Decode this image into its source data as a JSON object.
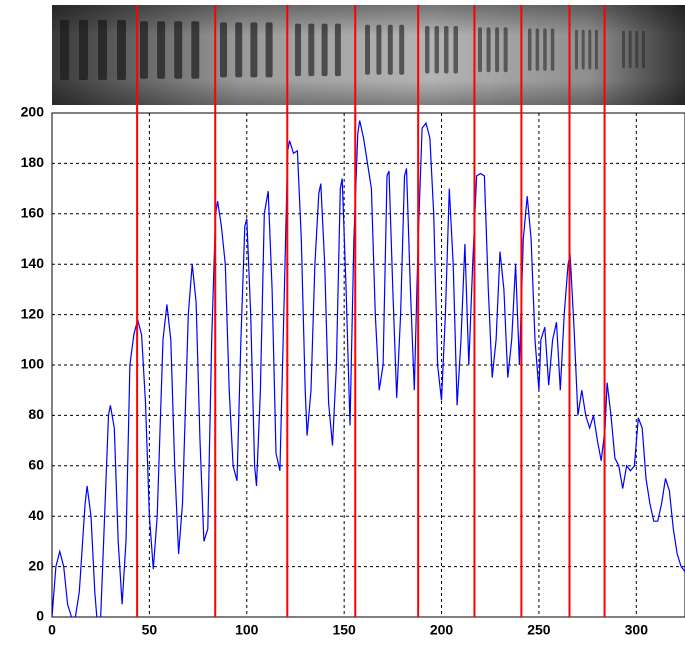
{
  "chart_data": {
    "type": "line",
    "x": [
      0,
      2,
      4,
      6,
      8,
      10,
      12,
      14,
      17,
      18,
      20,
      22,
      23,
      25,
      27,
      29,
      30,
      32,
      34,
      36,
      38,
      40,
      42,
      44,
      46,
      48,
      50,
      52,
      54,
      57,
      59,
      61,
      63,
      65,
      67,
      70,
      72,
      74,
      76,
      78,
      80,
      82,
      84,
      85,
      87,
      89,
      91,
      93,
      95,
      97,
      99,
      100,
      102,
      104,
      105,
      107,
      109,
      111,
      113,
      115,
      117,
      119,
      121,
      122,
      124,
      126,
      128,
      130,
      131,
      133,
      135,
      137,
      138,
      140,
      142,
      144,
      146,
      148,
      149,
      151,
      153,
      155,
      157,
      158,
      160,
      162,
      164,
      166,
      168,
      170,
      172,
      173,
      175,
      177,
      179,
      181,
      182,
      184,
      186,
      188,
      190,
      192,
      194,
      196,
      198,
      200,
      202,
      204,
      206,
      208,
      210,
      212,
      214,
      216,
      218,
      220,
      222,
      224,
      226,
      228,
      230,
      232,
      234,
      236,
      238,
      240,
      242,
      244,
      246,
      248,
      250,
      251,
      253,
      255,
      257,
      259,
      261,
      263,
      265,
      266,
      268,
      270,
      272,
      274,
      276,
      278,
      280,
      282,
      284,
      285,
      287,
      289,
      291,
      293,
      295,
      297,
      299,
      301,
      303,
      305,
      307,
      309,
      311,
      313,
      315,
      317,
      319,
      321,
      323,
      325
    ],
    "series": [
      {
        "color": "#0000ff",
        "values": [
          0,
          20,
          26,
          20,
          5,
          0,
          0,
          10,
          45,
          52,
          40,
          10,
          0,
          0,
          40,
          80,
          84,
          75,
          30,
          5,
          30,
          100,
          112,
          118,
          112,
          85,
          40,
          19,
          40,
          110,
          124,
          110,
          60,
          25,
          45,
          120,
          140,
          125,
          70,
          30,
          35,
          110,
          160,
          165,
          155,
          140,
          90,
          60,
          54,
          110,
          155,
          158,
          120,
          60,
          52,
          90,
          160,
          169,
          130,
          65,
          58,
          120,
          185,
          189,
          184,
          185,
          150,
          90,
          72,
          90,
          140,
          168,
          172,
          140,
          85,
          68,
          100,
          170,
          174,
          130,
          76,
          150,
          192,
          197,
          190,
          180,
          170,
          120,
          90,
          100,
          175,
          177,
          130,
          87,
          120,
          175,
          178,
          130,
          90,
          150,
          194,
          196,
          190,
          160,
          100,
          86,
          120,
          170,
          140,
          84,
          110,
          148,
          100,
          140,
          175,
          176,
          175,
          130,
          95,
          110,
          145,
          130,
          95,
          110,
          140,
          100,
          150,
          167,
          150,
          110,
          90,
          110,
          115,
          92,
          110,
          117,
          90,
          120,
          140,
          144,
          115,
          80,
          90,
          80,
          75,
          80,
          70,
          62,
          75,
          93,
          80,
          63,
          60,
          51,
          60,
          58,
          60,
          79,
          75,
          55,
          45,
          38,
          38,
          45,
          55,
          50,
          35,
          25,
          20,
          18
        ]
      }
    ],
    "vlines": [
      43.7,
      83.8,
      120.8,
      155.7,
      188,
      216.9,
      241,
      265.7,
      283.7
    ],
    "vline_color": "#ff0000",
    "xlim": [
      0,
      325
    ],
    "xticks": [
      0,
      50,
      100,
      150,
      200,
      250,
      300
    ],
    "ylim": [
      0,
      200
    ],
    "yticks": [
      0,
      20,
      40,
      60,
      80,
      100,
      120,
      140,
      160,
      180,
      200
    ],
    "grid": true
  }
}
